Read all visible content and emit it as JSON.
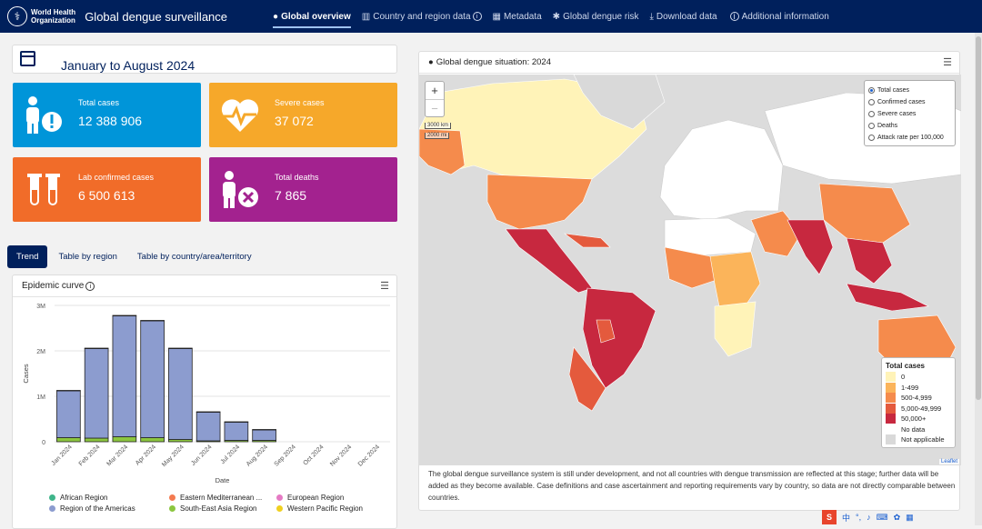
{
  "header": {
    "org_line1": "World Health",
    "org_line2": "Organization",
    "title": "Global dengue surveillance",
    "nav": [
      {
        "label": "Global overview",
        "icon": "globe-icon"
      },
      {
        "label": "Country and region data",
        "icon": "bar-chart-icon"
      },
      {
        "label": "Metadata",
        "icon": "table-icon"
      },
      {
        "label": "Global dengue risk",
        "icon": "mosquito-icon"
      },
      {
        "label": "Download data",
        "icon": "download-icon"
      },
      {
        "label": "Additional information",
        "icon": "info-icon"
      }
    ]
  },
  "period": "January to August 2024",
  "kpis": {
    "total_cases": {
      "label": "Total cases",
      "value": "12 388 906",
      "color": "#0095d9"
    },
    "severe_cases": {
      "label": "Severe cases",
      "value": "37 072",
      "color": "#f6a82a"
    },
    "lab_confirmed": {
      "label": "Lab confirmed cases",
      "value": "6 500 613",
      "color": "#f16c29"
    },
    "total_deaths": {
      "label": "Total deaths",
      "value": "7 865",
      "color": "#a3228f"
    }
  },
  "tabs": [
    "Trend",
    "Table by region",
    "Table by country/area/territory"
  ],
  "epidemic_curve": {
    "title": "Epidemic curve",
    "legend": [
      {
        "name": "African Region",
        "color": "#3fb58a"
      },
      {
        "name": "Eastern Mediterranean ...",
        "color": "#f47a50"
      },
      {
        "name": "European Region",
        "color": "#e57ac4"
      },
      {
        "name": "Region of the Americas",
        "color": "#8c9ccf"
      },
      {
        "name": "South-East Asia Region",
        "color": "#8cc63f"
      },
      {
        "name": "Western Pacific Region",
        "color": "#f0d020"
      }
    ]
  },
  "chart_data": {
    "type": "bar",
    "stacked": true,
    "title": "Epidemic curve",
    "xlabel": "Date",
    "ylabel": "Cases",
    "ylim": [
      0,
      3000000
    ],
    "yticks": [
      "0",
      "1M",
      "2M",
      "3M"
    ],
    "categories": [
      "Jan 2024",
      "Feb 2024",
      "Mar 2024",
      "Apr 2024",
      "May 2024",
      "Jun 2024",
      "Jul 2024",
      "Aug 2024",
      "Sep 2024",
      "Oct 2024",
      "Nov 2024",
      "Dec 2024"
    ],
    "series": [
      {
        "name": "South-East Asia Region",
        "color": "#8cc63f",
        "values": [
          90000,
          80000,
          110000,
          90000,
          50000,
          20000,
          30000,
          30000,
          0,
          0,
          0,
          0
        ]
      },
      {
        "name": "Region of the Americas",
        "color": "#8c9ccf",
        "values": [
          1030000,
          1970000,
          2660000,
          2570000,
          2000000,
          630000,
          400000,
          230000,
          0,
          0,
          0,
          0
        ]
      },
      {
        "name": "Western Pacific Region",
        "color": "#f0d020",
        "values": [
          10000,
          10000,
          10000,
          10000,
          10000,
          10000,
          10000,
          10000,
          0,
          0,
          0,
          0
        ]
      }
    ],
    "grid": true
  },
  "map": {
    "title": "Global dengue situation: 2024",
    "scale_km": "3000 km",
    "scale_mi": "2000 mi",
    "measures": [
      "Total cases",
      "Confirmed cases",
      "Severe cases",
      "Deaths",
      "Attack rate per 100,000"
    ],
    "selected_measure": "Total cases",
    "legend_title": "Total cases",
    "legend": [
      {
        "label": "0",
        "color": "#fff3b8"
      },
      {
        "label": "1-499",
        "color": "#fbb45a"
      },
      {
        "label": "500-4,999",
        "color": "#f58b4c"
      },
      {
        "label": "5,000-49,999",
        "color": "#e45a3d"
      },
      {
        "label": "50,000+",
        "color": "#c7283f"
      },
      {
        "label": "No data",
        "color": "#ffffff"
      },
      {
        "label": "Not applicable",
        "color": "#d9d9d9"
      }
    ],
    "attribution": "Leaflet",
    "note": "The global dengue surveillance system is still under development, and not all countries with dengue transmission are reflected at this stage; further data will be added as they become available. Case definitions and case ascertainment and reporting requirements vary by country, so data are not directly comparable between countries."
  },
  "taskbar": {
    "ime": "S",
    "lang": "中"
  }
}
